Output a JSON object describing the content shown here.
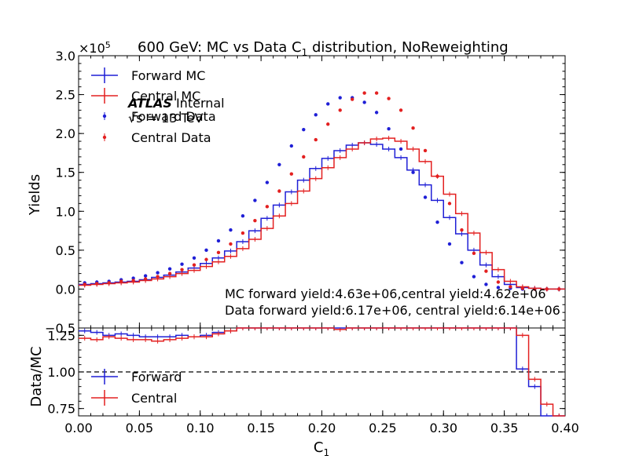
{
  "chart_data": [
    {
      "panel": "main",
      "type": "line",
      "title_main": "600 GeV: MC vs Data C",
      "title_sub": "1",
      "title_tail": " distribution, NoReweighting",
      "xlabel_main": "",
      "ylabel": "Yields",
      "xlim": [
        0.0,
        0.4
      ],
      "ylim": [
        -0.5,
        3.0
      ],
      "y_scale_label": "×10",
      "y_scale_exp": "5",
      "y_unit_note": "values in units of 1e5",
      "x_ticks": [
        "0.00",
        "0.05",
        "0.10",
        "0.15",
        "0.20",
        "0.25",
        "0.30",
        "0.35",
        "0.40"
      ],
      "y_ticks": [
        "−0.5",
        "0.0",
        "0.5",
        "1.0",
        "1.5",
        "2.0",
        "2.5",
        "3.0"
      ],
      "x": [
        0.005,
        0.015,
        0.025,
        0.035,
        0.045,
        0.055,
        0.065,
        0.075,
        0.085,
        0.095,
        0.105,
        0.115,
        0.125,
        0.135,
        0.145,
        0.155,
        0.165,
        0.175,
        0.185,
        0.195,
        0.205,
        0.215,
        0.225,
        0.235,
        0.245,
        0.255,
        0.265,
        0.275,
        0.285,
        0.295,
        0.305,
        0.315,
        0.325,
        0.335,
        0.345,
        0.355,
        0.365,
        0.375,
        0.385,
        0.395
      ],
      "series": [
        {
          "name": "Forward MC",
          "style": "step",
          "color": "#1f1fd6",
          "values": [
            0.06,
            0.07,
            0.08,
            0.09,
            0.1,
            0.12,
            0.15,
            0.18,
            0.22,
            0.27,
            0.33,
            0.4,
            0.49,
            0.61,
            0.75,
            0.91,
            1.08,
            1.25,
            1.4,
            1.55,
            1.68,
            1.78,
            1.85,
            1.88,
            1.86,
            1.8,
            1.69,
            1.53,
            1.34,
            1.14,
            0.92,
            0.71,
            0.5,
            0.31,
            0.16,
            0.06,
            0.02,
            0.01,
            0.0,
            0.0
          ]
        },
        {
          "name": "Central MC",
          "style": "step",
          "color": "#e32020",
          "values": [
            0.05,
            0.06,
            0.07,
            0.08,
            0.09,
            0.11,
            0.13,
            0.16,
            0.2,
            0.24,
            0.29,
            0.35,
            0.42,
            0.52,
            0.64,
            0.78,
            0.94,
            1.1,
            1.26,
            1.42,
            1.56,
            1.69,
            1.8,
            1.88,
            1.93,
            1.94,
            1.9,
            1.8,
            1.64,
            1.45,
            1.22,
            0.97,
            0.72,
            0.47,
            0.25,
            0.1,
            0.03,
            0.01,
            0.0,
            0.0
          ]
        },
        {
          "name": "Forward Data",
          "style": "points",
          "color": "#1f1fd6",
          "values": [
            0.08,
            0.09,
            0.1,
            0.12,
            0.14,
            0.17,
            0.21,
            0.26,
            0.32,
            0.4,
            0.5,
            0.62,
            0.76,
            0.94,
            1.14,
            1.37,
            1.6,
            1.84,
            2.05,
            2.24,
            2.38,
            2.46,
            2.46,
            2.4,
            2.27,
            2.06,
            1.8,
            1.5,
            1.18,
            0.86,
            0.58,
            0.34,
            0.16,
            0.06,
            0.02,
            0.01,
            0.0,
            0.0,
            0.0,
            0.0
          ]
        },
        {
          "name": "Central Data",
          "style": "points",
          "color": "#e32020",
          "values": [
            0.06,
            0.07,
            0.08,
            0.1,
            0.11,
            0.13,
            0.16,
            0.2,
            0.25,
            0.31,
            0.38,
            0.47,
            0.58,
            0.72,
            0.88,
            1.06,
            1.26,
            1.48,
            1.7,
            1.92,
            2.12,
            2.3,
            2.44,
            2.52,
            2.52,
            2.45,
            2.3,
            2.07,
            1.78,
            1.45,
            1.1,
            0.76,
            0.46,
            0.23,
            0.09,
            0.03,
            0.01,
            0.0,
            0.0,
            0.0
          ]
        }
      ],
      "legend": {
        "placement": "top-left",
        "entries": [
          "Forward MC",
          "Central MC",
          "Forward Data",
          "Central Data"
        ]
      },
      "atlas_label": {
        "bold": "ATLAS",
        "rest": " Internal"
      },
      "energy_label": "√s = 13 TeV",
      "annotations": [
        "MC forward yield:4.63e+06,central yield:4.62e+06",
        "Data forward yield:6.17e+06, central yield:6.14e+06"
      ]
    },
    {
      "panel": "ratio",
      "type": "line",
      "xlabel_main": "C",
      "xlabel_sub": "1",
      "ylabel": "Data/MC",
      "xlim": [
        0.0,
        0.4
      ],
      "ylim": [
        0.7,
        1.3
      ],
      "x_ticks": [
        "0.00",
        "0.05",
        "0.10",
        "0.15",
        "0.20",
        "0.25",
        "0.30",
        "0.35",
        "0.40"
      ],
      "y_ticks": [
        "0.75",
        "1.00",
        "1.25"
      ],
      "reference_line": 1.0,
      "x": [
        0.005,
        0.015,
        0.025,
        0.035,
        0.045,
        0.055,
        0.065,
        0.075,
        0.085,
        0.095,
        0.105,
        0.115,
        0.125,
        0.135,
        0.145,
        0.155,
        0.165,
        0.175,
        0.185,
        0.195,
        0.205,
        0.215,
        0.225,
        0.235,
        0.245,
        0.255,
        0.265,
        0.275,
        0.285,
        0.295,
        0.305,
        0.315,
        0.325,
        0.335,
        0.345,
        0.355,
        0.365,
        0.375,
        0.385,
        0.395
      ],
      "series": [
        {
          "name": "Forward",
          "style": "step",
          "color": "#1f1fd6",
          "values": [
            1.28,
            1.27,
            1.25,
            1.26,
            1.25,
            1.24,
            1.24,
            1.24,
            1.25,
            1.24,
            1.25,
            1.27,
            1.28,
            1.31,
            1.32,
            1.33,
            1.34,
            1.35,
            1.36,
            1.33,
            1.31,
            1.3,
            1.31,
            1.33,
            1.35,
            1.36,
            1.37,
            1.38,
            1.38,
            1.37,
            1.36,
            1.35,
            1.34,
            1.33,
            1.32,
            1.3,
            1.02,
            0.9,
            0.7,
            0.7
          ]
        },
        {
          "name": "Central",
          "style": "step",
          "color": "#e32020",
          "values": [
            1.23,
            1.22,
            1.24,
            1.23,
            1.22,
            1.22,
            1.21,
            1.22,
            1.23,
            1.24,
            1.24,
            1.26,
            1.28,
            1.3,
            1.32,
            1.33,
            1.34,
            1.35,
            1.36,
            1.33,
            1.3,
            1.29,
            1.3,
            1.33,
            1.35,
            1.36,
            1.37,
            1.38,
            1.38,
            1.37,
            1.36,
            1.35,
            1.34,
            1.33,
            1.32,
            1.31,
            1.25,
            0.95,
            0.78,
            0.7
          ]
        }
      ],
      "legend": {
        "placement": "bottom-left",
        "entries": [
          "Forward",
          "Central"
        ]
      }
    }
  ]
}
